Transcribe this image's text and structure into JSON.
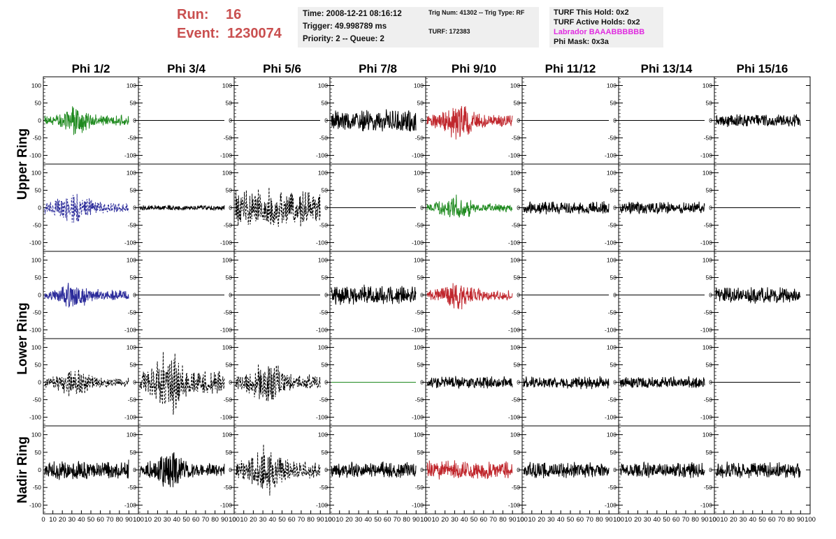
{
  "header": {
    "run_label": "Run:",
    "run_value": "16",
    "event_label": "Event:",
    "event_value": "1230074",
    "time": "Time: 2008-12-21 08:16:12",
    "trigger": "Trigger: 49.998789 ms",
    "priority": "Priority: 2 -- Queue: 2",
    "trig_num": "Trig Num: 41302 -- Trig Type: RF",
    "turf": "TURF: 172383",
    "turf_hold": "TURF This Hold: 0x2",
    "turf_active": "TURF Active Holds: 0x2",
    "labrador": "Labrador BAAABBBBBB",
    "phi_mask": "Phi Mask: 0x3a",
    "labrador_color": "#e02ce0",
    "run_color": "#c94f4f"
  },
  "chart_data": {
    "type": "line",
    "columns": [
      "Phi 1/2",
      "Phi 3/4",
      "Phi 5/6",
      "Phi 7/8",
      "Phi 9/10",
      "Phi 11/12",
      "Phi 13/14",
      "Phi 15/16"
    ],
    "rows": [
      "Upper Ring",
      "Lower Ring",
      "Nadir Ring"
    ],
    "y_ticks": [
      100,
      50,
      0,
      -50,
      -100
    ],
    "x_ticks": [
      "0",
      "10",
      "20",
      "30",
      "40",
      "50",
      "60",
      "70",
      "80",
      "90",
      "100"
    ],
    "xlim": [
      0,
      100
    ],
    "ylim": [
      -125,
      125
    ],
    "colors": {
      "green": "#1f8a1f",
      "red": "#c0272d",
      "blue": "#2b2b9a",
      "black": "#000000"
    },
    "panels": [
      [
        "green:35:1",
        "black:0:0",
        "black:0:0",
        "black:35:0",
        "red:45:1",
        "black:0:0",
        "black:0:0",
        "black:20:0"
      ],
      [
        "blue-dash:40:1",
        "black:8:0",
        "black-dash:60:0",
        "black:0:0",
        "green:30:1",
        "black:20:0",
        "black:18:0",
        "black:0:0"
      ],
      [
        "blue:35:1",
        "black:0:0",
        "black:0:0",
        "black:30:0",
        "red:35:1",
        "black:0:0",
        "black:0:0",
        "black:25:0"
      ],
      [
        "black-dash:35:1",
        "black-dash:80:1",
        "black-dash:55:1",
        "green:0:0",
        "black:20:0",
        "black:20:0",
        "black:18:0",
        "black:0:0"
      ],
      [
        "black:30:0",
        "black:45:1",
        "black-dash:60:1",
        "black:25:0",
        "red:30:0",
        "black:25:0",
        "black:25:0",
        "black:25:0"
      ]
    ]
  }
}
